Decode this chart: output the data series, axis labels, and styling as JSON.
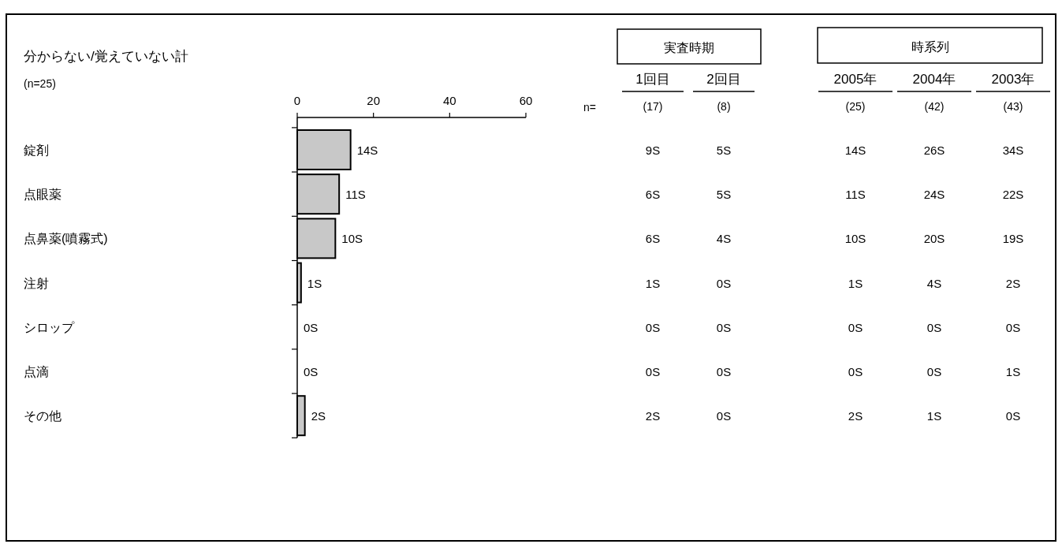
{
  "chart_data": [
    {
      "type": "bar",
      "orientation": "horizontal",
      "title": "分からない/覚えていない計",
      "subtitle": "(n=25)",
      "categories": [
        "錠剤",
        "点眼薬",
        "点鼻薬(噴霧式)",
        "注射",
        "シロップ",
        "点滴",
        "その他"
      ],
      "values": [
        14,
        11,
        10,
        1,
        0,
        0,
        2
      ],
      "value_labels": [
        "14S",
        "11S",
        "10S",
        "1S",
        "0S",
        "0S",
        "2S"
      ],
      "color": "#c8c8c8",
      "x2lim": [
        0,
        60
      ],
      "x2ticks": [
        0,
        20,
        40,
        60
      ]
    },
    {
      "type": "other",
      "annotations": [
        "実査時期",
        "時系列",
        "1回目",
        "2回目",
        "2005年",
        "2004年",
        "2003年",
        "n=",
        "(17)",
        "(8)",
        "(25)",
        "(42)",
        "(43)",
        "9S",
        "5S",
        "14S",
        "26S",
        "34S",
        "6S",
        "5S",
        "11S",
        "24S",
        "22S",
        "6S",
        "4S",
        "10S",
        "20S",
        "19S",
        "1S",
        "0S",
        "1S",
        "4S",
        "2S",
        "0S",
        "0S",
        "0S",
        "0S",
        "0S",
        "0S",
        "0S",
        "0S",
        "0S",
        "1S",
        "2S",
        "0S",
        "2S",
        "1S",
        "0S"
      ]
    }
  ]
}
